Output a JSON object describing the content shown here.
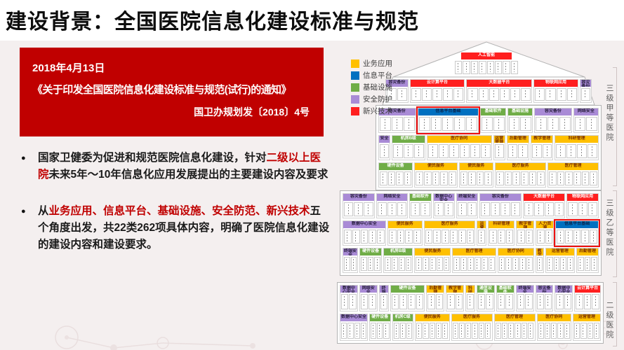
{
  "slide": {
    "title": "建设背景：全国医院信息化建设标准与规范",
    "notice_box": {
      "date": "2018年4月13日",
      "title": "《关于印发全国医院信息化建设标准与规范(试行)的通知》",
      "doc_number": "国卫办规划发〔2018〕4号"
    },
    "bullets": [
      {
        "segments": [
          {
            "text": "国家卫健委为促进和规范医院信息化建设，针对",
            "em": false
          },
          {
            "text": "二级以上医院",
            "em": true
          },
          {
            "text": "未来5年～10年信息化应用发展提出的主要建设内容及要求",
            "em": false
          }
        ]
      },
      {
        "segments": [
          {
            "text": "从",
            "em": false
          },
          {
            "text": "业务应用、信息平台、基础设施、安全防范、新兴技术",
            "em": true
          },
          {
            "text": "五个角度出发，共22类262项具体内容，明确了医院信息化建设的建设内容和建设要求。",
            "em": false
          }
        ]
      }
    ]
  },
  "diagram": {
    "palette": {
      "app": "#FFC000",
      "platform": "#0070C0",
      "infra": "#70AD47",
      "security": "#A98BD6",
      "emerging": "#FF1F1F"
    },
    "legend": [
      {
        "label": "业务应用",
        "type": "app"
      },
      {
        "label": "信息平台",
        "type": "platform"
      },
      {
        "label": "基础设施",
        "type": "infra"
      },
      {
        "label": "安全防护",
        "type": "security"
      },
      {
        "label": "新兴技术",
        "type": "emerging"
      }
    ],
    "tiers": [
      {
        "name": "三级甲等医院",
        "roof": {
          "label": "人工智能",
          "type": "emerging",
          "cells": 8
        },
        "attic": [
          {
            "label": "容灾备份",
            "type": "security",
            "cells": 2
          },
          {
            "label": "云计算平台",
            "type": "emerging",
            "cells": 5
          },
          {
            "label": "大数据平台",
            "type": "emerging",
            "cells": 6
          },
          {
            "label": "物联网应用",
            "type": "emerging",
            "cells": 4
          },
          {
            "label": "容灾备份",
            "type": "security",
            "cells": 1
          }
        ],
        "rows": [
          [
            {
              "label": "容灾备份",
              "type": "security",
              "cells": 3
            },
            {
              "label": "信息平台基础",
              "type": "platform",
              "cells": 5,
              "hl": true
            },
            {
              "label": "基础软件",
              "type": "infra",
              "cells": 2
            },
            {
              "label": "基础设施",
              "type": "infra",
              "cells": 2
            },
            {
              "label": "容灾备份",
              "type": "security",
              "cells": 3
            },
            {
              "label": "网络安全",
              "type": "security",
              "cells": 2
            }
          ],
          [
            {
              "label": "安全",
              "type": "security",
              "cells": 1
            },
            {
              "label": "机房B级",
              "type": "infra",
              "cells": 3
            },
            {
              "label": "医疗协同",
              "type": "app",
              "cells": 6
            },
            {
              "label": "运营管理",
              "type": "app",
              "cells": 1
            },
            {
              "label": "后勤管理",
              "type": "app",
              "cells": 2
            },
            {
              "label": "教学管理",
              "type": "app",
              "cells": 2
            },
            {
              "label": "科研管理",
              "type": "app",
              "cells": 4
            }
          ],
          [
            {
              "label": "硬件设备",
              "type": "infra",
              "cells": 4
            },
            {
              "label": "便民服务",
              "type": "app",
              "cells": 5
            },
            {
              "label": "便民服务",
              "type": "app",
              "cells": 4
            },
            {
              "label": "医疗服务",
              "type": "app",
              "cells": 6
            },
            {
              "label": "医疗管理",
              "type": "app",
              "cells": 6
            }
          ]
        ]
      },
      {
        "name": "三级乙等医院",
        "rows": [
          [
            {
              "label": "容灾备份",
              "type": "security",
              "cells": 3
            },
            {
              "label": "网络安全",
              "type": "security",
              "cells": 3
            },
            {
              "label": "基础软件",
              "type": "infra",
              "cells": 2
            },
            {
              "label": "数据中心安全",
              "type": "security",
              "cells": 2
            },
            {
              "label": "终端安全",
              "type": "security",
              "cells": 2
            },
            {
              "label": "容灾备份",
              "type": "security",
              "cells": 4
            },
            {
              "label": "大数据平台",
              "type": "emerging",
              "cells": 4
            },
            {
              "label": "物联网应用",
              "type": "emerging",
              "cells": 3
            }
          ],
          [
            {
              "label": "数据中心安全",
              "type": "security",
              "cells": 5
            },
            {
              "label": "便民服务",
              "type": "app",
              "cells": 4
            },
            {
              "label": "医疗服务",
              "type": "app",
              "cells": 6
            },
            {
              "label": "运营管理",
              "type": "app",
              "cells": 1
            },
            {
              "label": "科研管理",
              "type": "app",
              "cells": 3
            },
            {
              "label": "教学管理",
              "type": "app",
              "cells": 2
            },
            {
              "label": "人力资源",
              "type": "app",
              "cells": 2
            },
            {
              "label": "信息平台基础",
              "type": "platform",
              "cells": 5,
              "hl": true
            }
          ],
          [
            {
              "label": "终端安全",
              "type": "security",
              "cells": 2
            },
            {
              "label": "硬件设备",
              "type": "infra",
              "cells": 3
            },
            {
              "label": "机房B级",
              "type": "infra",
              "cells": 4
            },
            {
              "label": "便民服务",
              "type": "app",
              "cells": 5
            },
            {
              "label": "医疗管理",
              "type": "app",
              "cells": 6
            },
            {
              "label": "医疗协同",
              "type": "app",
              "cells": 5
            },
            {
              "label": "教学管理",
              "type": "app",
              "cells": 1
            },
            {
              "label": "运营管理",
              "type": "app",
              "cells": 4
            },
            {
              "label": "后勤管理",
              "type": "app",
              "cells": 3
            }
          ]
        ]
      },
      {
        "name": "二级医院",
        "rows": [
          [
            {
              "label": "数据中心安全",
              "type": "security",
              "cells": 2
            },
            {
              "label": "网络安全",
              "type": "security",
              "cells": 2
            },
            {
              "label": "终端安全",
              "type": "security",
              "cells": 1
            },
            {
              "label": "硬件设备",
              "type": "infra",
              "cells": 4
            },
            {
              "label": "后勤管理",
              "type": "app",
              "cells": 2
            },
            {
              "label": "教学管理",
              "type": "app",
              "cells": 2
            },
            {
              "label": "科研管理",
              "type": "app",
              "cells": 1
            },
            {
              "label": "通信设施",
              "type": "infra",
              "cells": 2
            },
            {
              "label": "基础软件",
              "type": "infra",
              "cells": 2
            },
            {
              "label": "终端安全",
              "type": "security",
              "cells": 2
            },
            {
              "label": "容灾备份",
              "type": "security",
              "cells": 2
            },
            {
              "label": "数据中心安全",
              "type": "security",
              "cells": 2
            },
            {
              "label": "云计算平台",
              "type": "emerging",
              "cells": 3
            }
          ],
          [
            {
              "label": "数据中心安全",
              "type": "security",
              "cells": 4
            },
            {
              "label": "硬件设备",
              "type": "infra",
              "cells": 3
            },
            {
              "label": "机房C级",
              "type": "infra",
              "cells": 3
            },
            {
              "label": "便民服务",
              "type": "app",
              "cells": 5
            },
            {
              "label": "医疗服务",
              "type": "app",
              "cells": 6
            },
            {
              "label": "医疗管理",
              "type": "app",
              "cells": 6
            },
            {
              "label": "医疗协同",
              "type": "app",
              "cells": 5
            },
            {
              "label": "运营管理",
              "type": "app",
              "cells": 4
            }
          ]
        ]
      }
    ]
  }
}
